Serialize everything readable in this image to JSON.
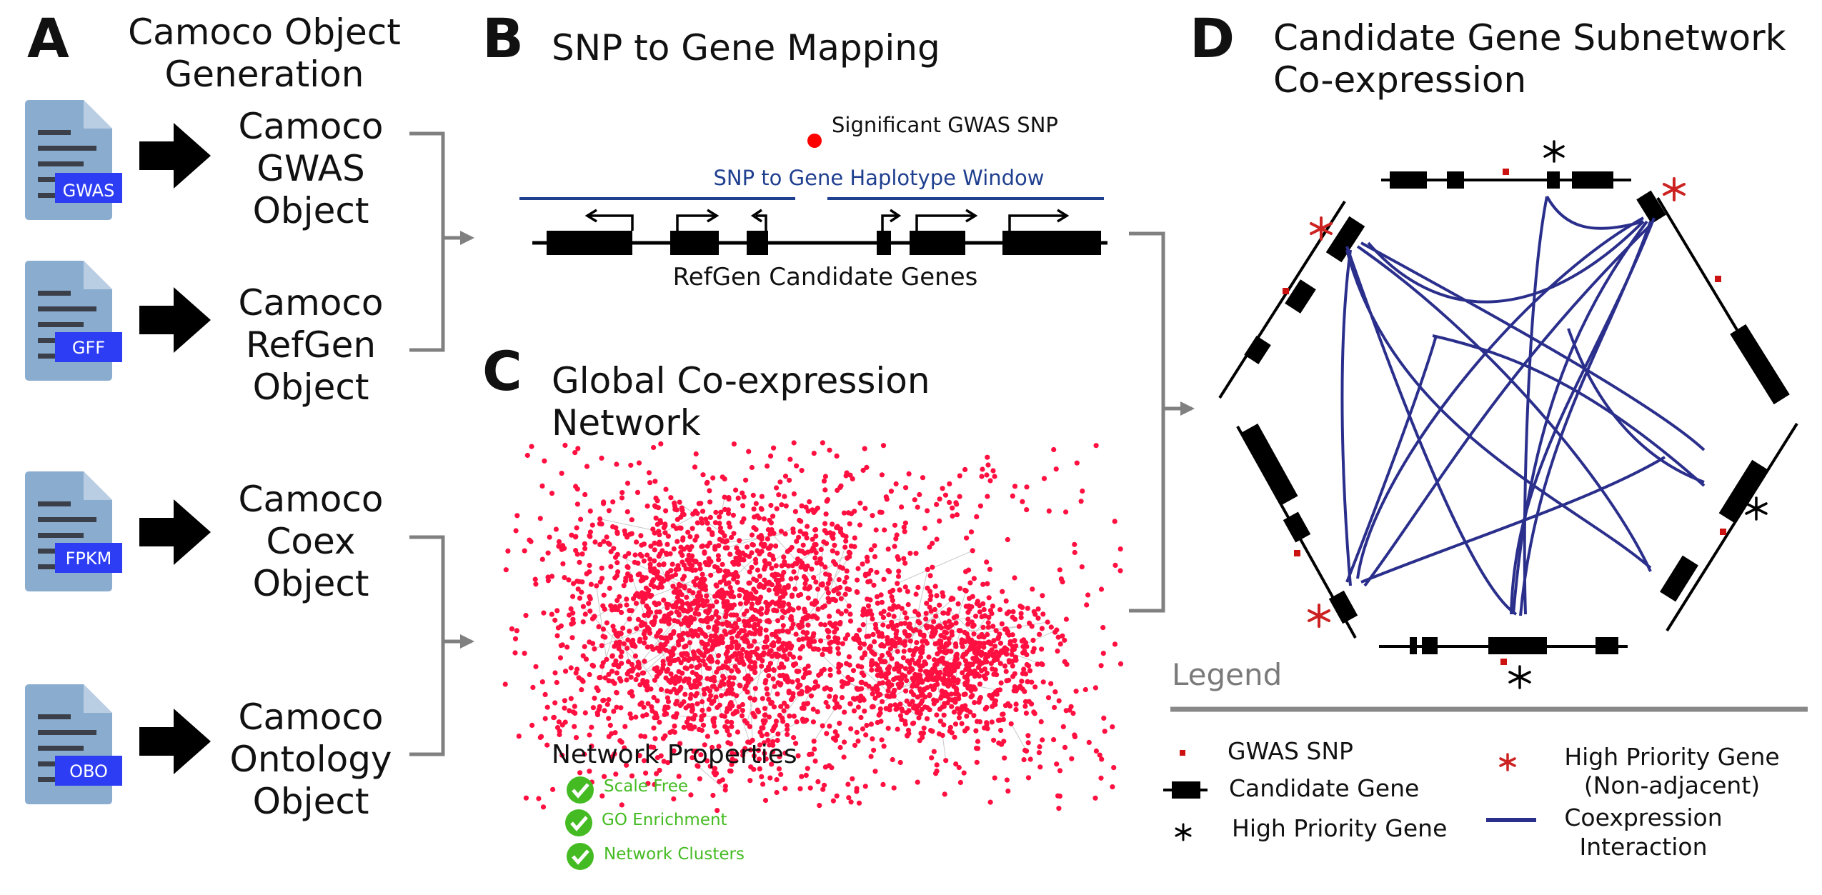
{
  "panelA": {
    "letter": "A",
    "title": "Camoco Object Generation",
    "files": [
      {
        "tag": "GWAS",
        "object": [
          "Camoco",
          "GWAS",
          "Object"
        ]
      },
      {
        "tag": "GFF",
        "object": [
          "Camoco",
          "RefGen",
          "Object"
        ]
      },
      {
        "tag": "FPKM",
        "object": [
          "Camoco",
          "Coex",
          "Object"
        ]
      },
      {
        "tag": "OBO",
        "object": [
          "Camoco",
          "Ontology",
          "Object"
        ]
      }
    ],
    "colors": {
      "file": "#8aaccf",
      "file_fold": "#b9cde3",
      "file_lines": "#3a3f4a",
      "tag": "#2c3df4",
      "arrow": "#000000",
      "bracket": "#808080"
    }
  },
  "panelB": {
    "letter": "B",
    "title": "SNP to Gene Mapping",
    "snp_label": "Significant GWAS SNP",
    "window_label": "SNP to Gene Haplotype Window",
    "genes_label": "RefGen Candidate Genes",
    "colors": {
      "snp": "#ff0000",
      "window": "#1f3f8f",
      "gene": "#000000"
    }
  },
  "panelC": {
    "letter": "C",
    "title": "Global Co-expression Network",
    "properties_title": "Network Properties",
    "properties": [
      "Scale Free",
      "GO Enrichment",
      "Network Clusters"
    ],
    "colors": {
      "node": "#ff1040",
      "edge": "#c8c8c8",
      "check": "#44bb22"
    }
  },
  "panelD": {
    "letter": "D",
    "title": "Candidate Gene Subnetwork Co-expression",
    "legend": {
      "title": "Legend",
      "items": [
        {
          "label": "GWAS SNP",
          "icon": "gwas-snp-square-icon"
        },
        {
          "label": "Candidate Gene",
          "icon": "candidate-gene-bar-icon"
        },
        {
          "label": "High Priority Gene",
          "icon": "black-asterisk-icon"
        },
        {
          "label": "High Priority Gene (Non-adjacent)",
          "icon": "red-asterisk-icon"
        },
        {
          "label": "Coexpression Interaction",
          "icon": "blue-line-icon"
        }
      ]
    },
    "colors": {
      "snp": "#cc1111",
      "high_priority_nonadjacent": "#cc2222",
      "edge": "#2b2f8c",
      "legend_rule": "#888888",
      "legend_title": "#7a7a7a"
    }
  }
}
